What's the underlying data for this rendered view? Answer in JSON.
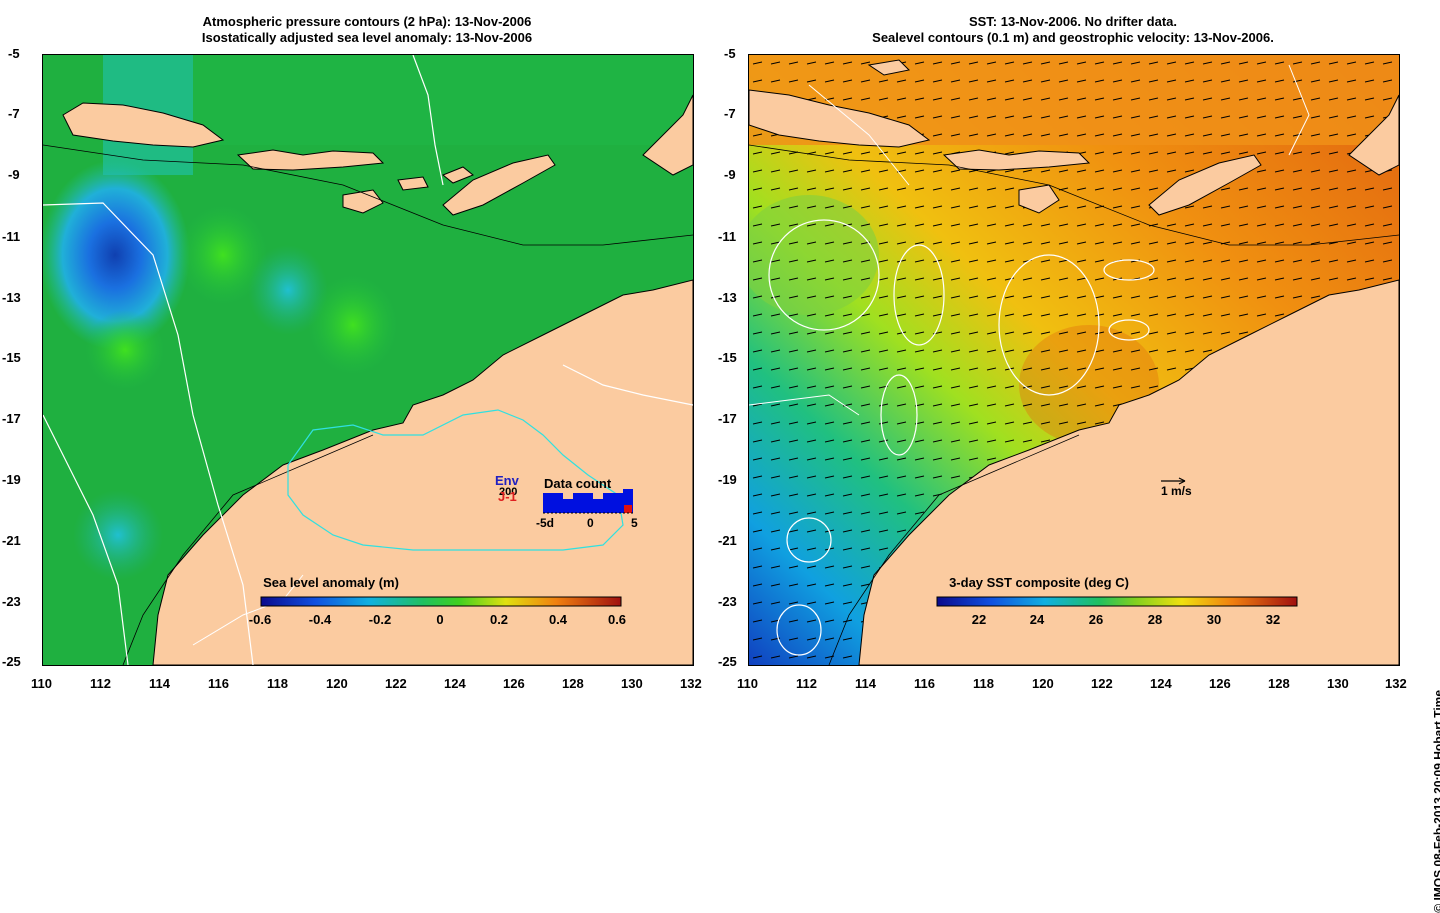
{
  "left_panel": {
    "title_line1": "Atmospheric pressure contours (2 hPa): 13-Nov-2006",
    "title_line2": "Isostatically adjusted sea level anomaly: 13-Nov-2006",
    "colorbar": {
      "title": "Sea level anomaly (m)",
      "ticks": [
        "-0.6",
        "-0.4",
        "-0.2",
        "0",
        "0.2",
        "0.4",
        "0.6"
      ]
    },
    "inset": {
      "title": "Data count",
      "label_env": "Env",
      "label_j1": "J-1",
      "label_count": "200",
      "x_ticks": [
        "-5d",
        "0",
        "5"
      ]
    }
  },
  "right_panel": {
    "title_line1": "SST: 13-Nov-2006. No drifter data.",
    "title_line2": "Sealevel contours (0.1 m) and geostrophic velocity: 13-Nov-2006.",
    "colorbar": {
      "title": "3-day SST composite (deg C)",
      "ticks": [
        "22",
        "24",
        "26",
        "28",
        "30",
        "32"
      ]
    },
    "velocity_scale_label": "1 m/s"
  },
  "axes": {
    "y_ticks": [
      "-5",
      "-7",
      "-9",
      "-11",
      "-13",
      "-15",
      "-17",
      "-19",
      "-21",
      "-23",
      "-25"
    ],
    "x_ticks": [
      "110",
      "112",
      "114",
      "116",
      "118",
      "120",
      "122",
      "124",
      "126",
      "128",
      "130",
      "132"
    ]
  },
  "credit": "© IMOS 08-Feb-2013 20:09 Hobart Time",
  "colors": {
    "land": "#fbcba0",
    "ocean_left": "#1fb040",
    "ocean_right": "#f09010",
    "contour": "#ffffff",
    "coast": "#000000",
    "cyan_contour": "#30e0e0"
  }
}
